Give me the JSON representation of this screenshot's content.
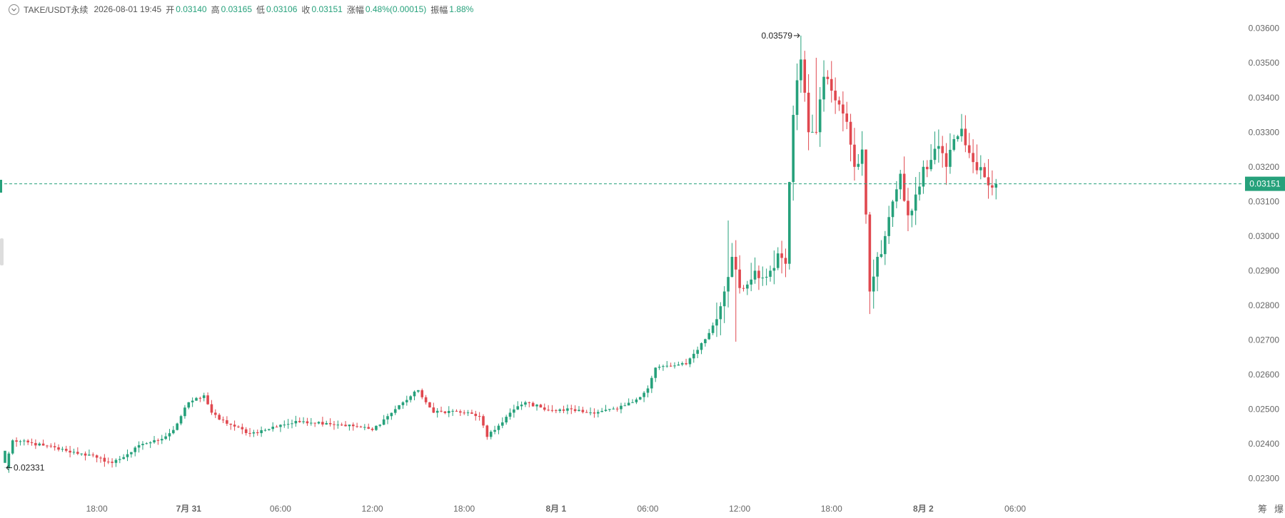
{
  "header": {
    "symbol": "TAKE/USDT永续",
    "time": "2026-08-01 19:45",
    "open_label": "开",
    "open": "0.03140",
    "high_label": "高",
    "high": "0.03165",
    "low_label": "低",
    "low": "0.03106",
    "close_label": "收",
    "close": "0.03151",
    "change_label": "涨幅",
    "change": "0.48%(0.00015)",
    "amplitude_label": "振幅",
    "amplitude": "1.88%"
  },
  "right_buttons": {
    "btn1": "筹",
    "btn2": "爆"
  },
  "colors": {
    "up": "#26a17b",
    "down": "#e0484f",
    "axis_text": "#666666",
    "current_line": "#26a17b"
  },
  "chart_data": {
    "type": "candlestick",
    "interval_minutes": 15,
    "x_ticks": [
      "18:00",
      "7月 31",
      "06:00",
      "12:00",
      "18:00",
      "8月 1",
      "06:00",
      "12:00",
      "18:00",
      "8月 2",
      "06:00"
    ],
    "x_tick_bold": [
      false,
      true,
      false,
      false,
      false,
      true,
      false,
      false,
      false,
      true,
      false
    ],
    "y_ticks": [
      "0.02300",
      "0.02400",
      "0.02500",
      "0.02600",
      "0.02700",
      "0.02800",
      "0.02900",
      "0.03000",
      "0.03100",
      "0.03200",
      "0.03300",
      "0.03400",
      "0.03500",
      "0.03600"
    ],
    "ylim": [
      0.0226,
      0.0362
    ],
    "current_price": 0.03151,
    "current_price_label": "0.03151",
    "max_label": "0.03579",
    "min_label": "0.02331",
    "max_price": 0.03579,
    "min_price": 0.02331,
    "key_points": [
      [
        0,
        0.02331
      ],
      [
        2,
        0.0241
      ],
      [
        10,
        0.02395
      ],
      [
        16,
        0.0238
      ],
      [
        20,
        0.02372
      ],
      [
        24,
        0.0236
      ],
      [
        28,
        0.02345
      ],
      [
        32,
        0.0237
      ],
      [
        36,
        0.024
      ],
      [
        40,
        0.0241
      ],
      [
        44,
        0.0244
      ],
      [
        48,
        0.0252
      ],
      [
        52,
        0.0254
      ],
      [
        54,
        0.0249
      ],
      [
        56,
        0.0247
      ],
      [
        60,
        0.0245
      ],
      [
        64,
        0.0243
      ],
      [
        68,
        0.0244
      ],
      [
        72,
        0.02455
      ],
      [
        78,
        0.02465
      ],
      [
        84,
        0.0246
      ],
      [
        88,
        0.02455
      ],
      [
        92,
        0.0245
      ],
      [
        96,
        0.0244
      ],
      [
        100,
        0.0248
      ],
      [
        104,
        0.0252
      ],
      [
        108,
        0.02555
      ],
      [
        110,
        0.0252
      ],
      [
        112,
        0.0249
      ],
      [
        116,
        0.02495
      ],
      [
        120,
        0.0249
      ],
      [
        124,
        0.0248
      ],
      [
        126,
        0.0242
      ],
      [
        128,
        0.0244
      ],
      [
        132,
        0.0249
      ],
      [
        136,
        0.0252
      ],
      [
        140,
        0.02505
      ],
      [
        144,
        0.02495
      ],
      [
        148,
        0.025
      ],
      [
        152,
        0.0249
      ],
      [
        156,
        0.02495
      ],
      [
        160,
        0.025
      ],
      [
        164,
        0.0252
      ],
      [
        168,
        0.0256
      ],
      [
        170,
        0.0262
      ],
      [
        174,
        0.02625
      ],
      [
        178,
        0.0263
      ],
      [
        180,
        0.0266
      ],
      [
        184,
        0.0272
      ],
      [
        186,
        0.0276
      ],
      [
        188,
        0.0284
      ],
      [
        190,
        0.0294
      ],
      [
        192,
        0.0285
      ],
      [
        194,
        0.0286
      ],
      [
        196,
        0.029
      ],
      [
        198,
        0.0288
      ],
      [
        200,
        0.029
      ],
      [
        202,
        0.0295
      ],
      [
        204,
        0.0292
      ],
      [
        206,
        0.0335
      ],
      [
        207,
        0.0345
      ],
      [
        208,
        0.0351
      ],
      [
        210,
        0.033
      ],
      [
        212,
        0.033
      ],
      [
        214,
        0.0346
      ],
      [
        216,
        0.0342
      ],
      [
        218,
        0.0338
      ],
      [
        220,
        0.0333
      ],
      [
        222,
        0.032
      ],
      [
        224,
        0.0325
      ],
      [
        226,
        0.0284
      ],
      [
        228,
        0.0294
      ],
      [
        230,
        0.03
      ],
      [
        232,
        0.031
      ],
      [
        234,
        0.0318
      ],
      [
        236,
        0.0306
      ],
      [
        238,
        0.0312
      ],
      [
        240,
        0.032
      ],
      [
        242,
        0.0322
      ],
      [
        244,
        0.0326
      ],
      [
        246,
        0.032
      ],
      [
        248,
        0.0328
      ],
      [
        250,
        0.0331
      ],
      [
        252,
        0.0324
      ],
      [
        254,
        0.0319
      ],
      [
        256,
        0.0317
      ],
      [
        258,
        0.0314
      ],
      [
        259,
        0.03151
      ]
    ]
  }
}
